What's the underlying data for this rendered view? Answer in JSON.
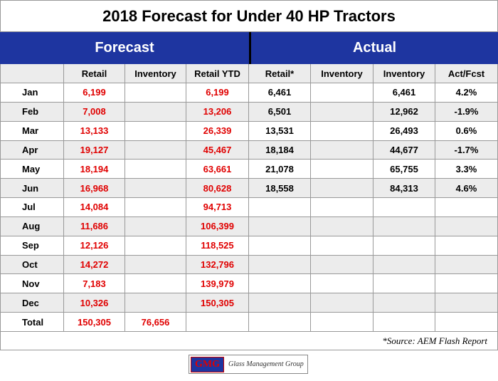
{
  "header": {
    "title": "2018 Forecast for Under 40 HP Tractors"
  },
  "table": {
    "groups": [
      "Forecast",
      "Actual"
    ],
    "columns": [
      null,
      "Retail",
      "Inventory",
      "Retail YTD",
      "Retail*",
      "Inventory",
      "Inventory",
      "Act/Fcst"
    ],
    "rows": [
      [
        "Jan",
        "6,199",
        null,
        "6,199",
        "6,461",
        null,
        "6,461",
        "4.2%"
      ],
      [
        "Feb",
        "7,008",
        null,
        "13,206",
        "6,501",
        null,
        "12,962",
        "-1.9%"
      ],
      [
        "Mar",
        "13,133",
        null,
        "26,339",
        "13,531",
        null,
        "26,493",
        "0.6%"
      ],
      [
        "Apr",
        "19,127",
        null,
        "45,467",
        "18,184",
        null,
        "44,677",
        "-1.7%"
      ],
      [
        "May",
        "18,194",
        null,
        "63,661",
        "21,078",
        null,
        "65,755",
        "3.3%"
      ],
      [
        "Jun",
        "16,968",
        null,
        "80,628",
        "18,558",
        null,
        "84,313",
        "4.6%"
      ],
      [
        "Jul",
        "14,084",
        null,
        "94,713",
        null,
        null,
        null,
        null
      ],
      [
        "Aug",
        "11,686",
        null,
        "106,399",
        null,
        null,
        null,
        null
      ],
      [
        "Sep",
        "12,126",
        null,
        "118,525",
        null,
        null,
        null,
        null
      ],
      [
        "Oct",
        "14,272",
        null,
        "132,796",
        null,
        null,
        null,
        null
      ],
      [
        "Nov",
        "7,183",
        null,
        "139,979",
        null,
        null,
        null,
        null
      ],
      [
        "Dec",
        "10,326",
        null,
        "150,305",
        null,
        null,
        null,
        null
      ],
      [
        "Total",
        "150,305",
        "76,656",
        null,
        null,
        null,
        null,
        null
      ]
    ],
    "source": "*Source: AEM Flash Report"
  },
  "logo": {
    "mark": "GMG",
    "name": "Glass Management Group"
  }
}
